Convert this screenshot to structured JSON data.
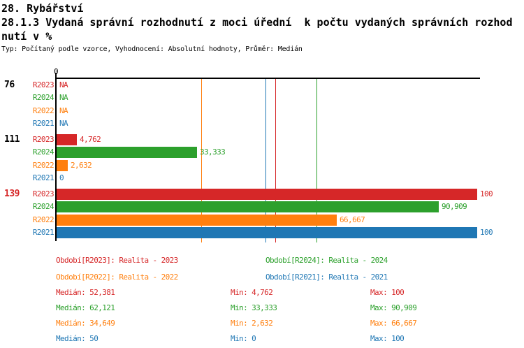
{
  "header": {
    "title": "28. Rybářství",
    "subtitle_line1": "28.1.3 Vydaná správní rozhodnutí z moci úřední  k počtu vydaných správních rozhod",
    "subtitle_line2": "nutí v %",
    "meta": "Typ: Počítaný podle vzorce, Vyhodnocení: Absolutní hodnoty, Průměr: Medián"
  },
  "chart_data": {
    "type": "bar",
    "orientation": "horizontal",
    "grid": false,
    "legend_position": "bottom",
    "axis_color": "#000000",
    "xlim": [
      0,
      100
    ],
    "x_ticks": [
      "0"
    ],
    "categories": [
      "76",
      "111",
      "139"
    ],
    "series": [
      {
        "id": "R2023",
        "name": "Realita - 2023",
        "color": "#d62728",
        "median": 52.381,
        "min": 4.762,
        "max": 100
      },
      {
        "id": "R2024",
        "name": "Realita - 2024",
        "color": "#2ca02c",
        "median": 62.121,
        "min": 33.333,
        "max": 90.909
      },
      {
        "id": "R2022",
        "name": "Realita - 2022",
        "color": "#ff7f0e",
        "median": 34.649,
        "min": 2.632,
        "max": 66.667
      },
      {
        "id": "R2021",
        "name": "Realita - 2021",
        "color": "#1f77b4",
        "median": 50,
        "min": 0,
        "max": 100
      }
    ],
    "groups": [
      {
        "category": "76",
        "category_color": "#000000",
        "bars": [
          {
            "series": "R2023",
            "value": null,
            "label": "NA"
          },
          {
            "series": "R2024",
            "value": null,
            "label": "NA"
          },
          {
            "series": "R2022",
            "value": null,
            "label": "NA"
          },
          {
            "series": "R2021",
            "value": null,
            "label": "NA"
          }
        ]
      },
      {
        "category": "111",
        "category_color": "#000000",
        "bars": [
          {
            "series": "R2023",
            "value": 4.762,
            "label": "4,762"
          },
          {
            "series": "R2024",
            "value": 33.333,
            "label": "33,333"
          },
          {
            "series": "R2022",
            "value": 2.632,
            "label": "2,632"
          },
          {
            "series": "R2021",
            "value": 0,
            "label": "0"
          }
        ]
      },
      {
        "category": "139",
        "category_color": "#d62728",
        "bars": [
          {
            "series": "R2023",
            "value": 100,
            "label": "100"
          },
          {
            "series": "R2024",
            "value": 90.909,
            "label": "90,909"
          },
          {
            "series": "R2022",
            "value": 66.667,
            "label": "66,667"
          },
          {
            "series": "R2021",
            "value": 100,
            "label": "100"
          }
        ]
      }
    ]
  },
  "legend": {
    "items": [
      {
        "series": "R2023",
        "label": "Období[R2023]: Realita - 2023"
      },
      {
        "series": "R2024",
        "label": "Období[R2024]: Realita - 2024"
      },
      {
        "series": "R2022",
        "label": "Období[R2022]: Realita - 2022"
      },
      {
        "series": "R2021",
        "label": "Období[R2021]: Realita - 2021"
      }
    ]
  },
  "stats": {
    "rows": [
      {
        "series": "R2023",
        "cells": [
          "Medián: 52,381",
          "Min: 4,762",
          "Max: 100"
        ]
      },
      {
        "series": "R2024",
        "cells": [
          "Medián: 62,121",
          "Min: 33,333",
          "Max: 90,909"
        ]
      },
      {
        "series": "R2022",
        "cells": [
          "Medián: 34,649",
          "Min: 2,632",
          "Max: 66,667"
        ]
      },
      {
        "series": "R2021",
        "cells": [
          "Medián: 50",
          "Min: 0",
          "Max: 100"
        ]
      }
    ]
  }
}
